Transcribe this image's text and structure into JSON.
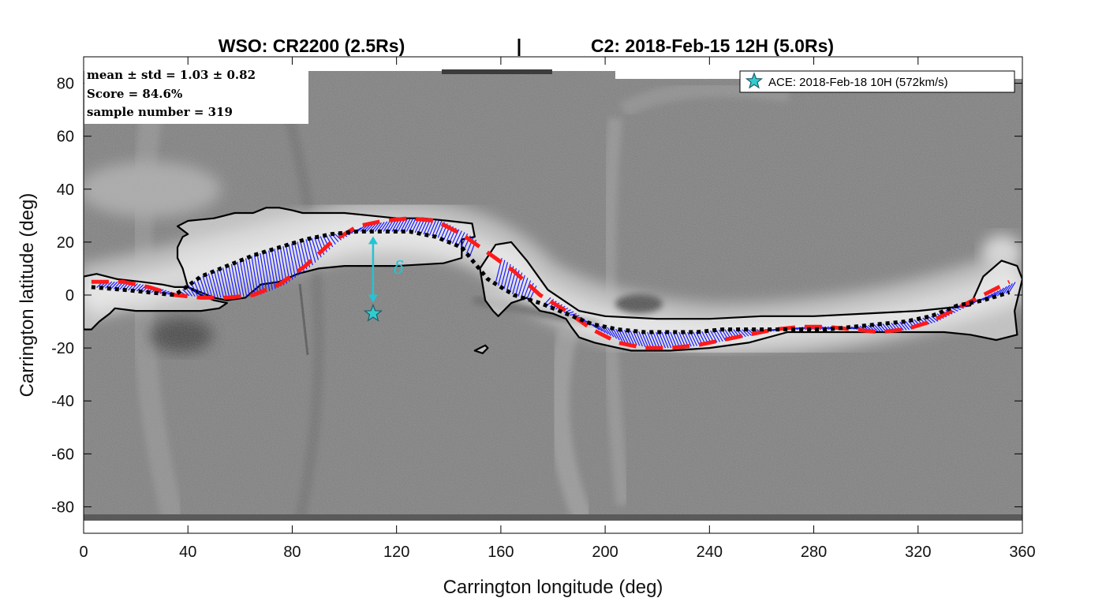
{
  "chart_data": {
    "type": "line",
    "title_left": "WSO:  CR2200    (2.5Rs)",
    "title_sep": "|",
    "title_right": "C2:  2018-Feb-15 12H   (5.0Rs)",
    "xlabel": "Carrington longitude (deg)",
    "ylabel": "Carrington latitude (deg)",
    "xlim": [
      0,
      360
    ],
    "ylim": [
      -90,
      90
    ],
    "xticks": [
      0,
      40,
      80,
      120,
      160,
      200,
      240,
      280,
      320,
      360
    ],
    "yticks": [
      -80,
      -60,
      -40,
      -20,
      0,
      20,
      40,
      60,
      80
    ],
    "stats": [
      "mean ± std = 1.03 ± 0.82",
      "Score = 84.6%",
      "sample number = 319"
    ],
    "legend": {
      "label": "ACE: 2018-Feb-18 10H  (572km/s)",
      "marker_color": "#33cccc",
      "position": "top-right"
    },
    "delta_label": "δ",
    "ace_point": {
      "lon": 111,
      "lat": -7
    },
    "series": [
      {
        "name": "WSO neutral line",
        "color": "#ff1a1a",
        "style": "dashed",
        "x": [
          3,
          15,
          25,
          35,
          45,
          55,
          65,
          75,
          85,
          95,
          105,
          115,
          125,
          135,
          145,
          155,
          165,
          175,
          185,
          195,
          205,
          215,
          225,
          235,
          245,
          255,
          265,
          275,
          285,
          295,
          305,
          315,
          325,
          335,
          345,
          355
        ],
        "y": [
          5,
          5,
          3,
          0,
          -1,
          -1,
          0,
          4,
          11,
          20,
          26,
          28,
          29,
          28,
          23,
          16,
          9,
          0,
          -6,
          -13,
          -18,
          -20,
          -20,
          -19,
          -17,
          -15,
          -13,
          -12,
          -12,
          -13,
          -14,
          -13,
          -10,
          -5,
          0,
          5
        ]
      },
      {
        "name": "C2 streamer belt",
        "color": "#000000",
        "style": "dotted",
        "x": [
          3,
          15,
          25,
          35,
          45,
          55,
          65,
          75,
          85,
          95,
          105,
          115,
          125,
          135,
          145,
          155,
          165,
          175,
          185,
          195,
          205,
          215,
          225,
          235,
          245,
          255,
          265,
          275,
          285,
          295,
          305,
          315,
          325,
          335,
          345,
          355
        ],
        "y": [
          3,
          2,
          1,
          0,
          7,
          11,
          15,
          18,
          21,
          23,
          24,
          24,
          24,
          22,
          18,
          6,
          0,
          -3,
          -7,
          -11,
          -13,
          -14,
          -14,
          -14,
          -13,
          -13,
          -13,
          -13,
          -13,
          -12,
          -11,
          -10,
          -8,
          -4,
          -2,
          1
        ]
      }
    ],
    "contours": [
      {
        "name": "contour-west",
        "points": [
          [
            0,
            7
          ],
          [
            5,
            8
          ],
          [
            13,
            6
          ],
          [
            22,
            5
          ],
          [
            30,
            4
          ],
          [
            35,
            3
          ],
          [
            40,
            3
          ],
          [
            45,
            0
          ],
          [
            50,
            -2
          ],
          [
            55,
            -3
          ],
          [
            52,
            -5
          ],
          [
            45,
            -6
          ],
          [
            35,
            -6
          ],
          [
            20,
            -6
          ],
          [
            12,
            -5
          ],
          [
            10,
            -7
          ],
          [
            6,
            -10
          ],
          [
            3,
            -13
          ],
          [
            0,
            -13
          ],
          [
            0,
            7
          ]
        ]
      },
      {
        "name": "contour-main-upper",
        "points": [
          [
            40,
            23
          ],
          [
            36,
            26
          ],
          [
            40,
            28
          ],
          [
            50,
            29
          ],
          [
            58,
            31
          ],
          [
            65,
            31
          ],
          [
            70,
            33
          ],
          [
            75,
            33
          ],
          [
            80,
            32
          ],
          [
            84,
            31
          ],
          [
            92,
            31
          ],
          [
            100,
            31
          ],
          [
            110,
            30
          ],
          [
            120,
            29
          ],
          [
            130,
            29
          ],
          [
            140,
            28
          ],
          [
            149,
            27
          ],
          [
            150,
            22
          ],
          [
            145,
            21
          ],
          [
            145,
            14
          ],
          [
            138,
            12
          ],
          [
            120,
            11
          ],
          [
            100,
            11
          ],
          [
            90,
            10
          ],
          [
            82,
            8
          ],
          [
            75,
            5
          ],
          [
            68,
            4
          ],
          [
            62,
            -1
          ],
          [
            55,
            -2
          ],
          [
            50,
            -1
          ],
          [
            45,
            1
          ],
          [
            40,
            3
          ],
          [
            38,
            10
          ],
          [
            36,
            14
          ],
          [
            36,
            18
          ],
          [
            38,
            22
          ],
          [
            40,
            23
          ]
        ]
      },
      {
        "name": "contour-east-belt",
        "points": [
          [
            152,
            10
          ],
          [
            158,
            19
          ],
          [
            164,
            20
          ],
          [
            170,
            13
          ],
          [
            178,
            2
          ],
          [
            190,
            -6
          ],
          [
            200,
            -8
          ],
          [
            220,
            -9
          ],
          [
            240,
            -9
          ],
          [
            260,
            -8
          ],
          [
            280,
            -8
          ],
          [
            300,
            -7
          ],
          [
            320,
            -6
          ],
          [
            340,
            -4
          ],
          [
            345,
            7
          ],
          [
            352,
            13
          ],
          [
            358,
            11
          ],
          [
            360,
            6
          ],
          [
            357,
            -6
          ],
          [
            358,
            -15
          ],
          [
            350,
            -17
          ],
          [
            340,
            -15
          ],
          [
            330,
            -14
          ],
          [
            310,
            -14
          ],
          [
            290,
            -14
          ],
          [
            270,
            -14
          ],
          [
            255,
            -18
          ],
          [
            240,
            -20
          ],
          [
            225,
            -21
          ],
          [
            210,
            -21
          ],
          [
            205,
            -20
          ],
          [
            196,
            -18
          ],
          [
            190,
            -16
          ],
          [
            187,
            -12
          ],
          [
            185,
            -9
          ],
          [
            180,
            -7
          ],
          [
            175,
            -6
          ],
          [
            170,
            -1
          ],
          [
            164,
            -3
          ],
          [
            159,
            -8
          ],
          [
            157,
            -6
          ],
          [
            154,
            -2
          ],
          [
            152,
            10
          ]
        ]
      },
      {
        "name": "contour-small",
        "points": [
          [
            150,
            -21
          ],
          [
            153,
            -22
          ],
          [
            155,
            -20
          ],
          [
            154,
            -19
          ],
          [
            152,
            -20
          ],
          [
            150,
            -21
          ]
        ]
      }
    ]
  },
  "colors": {
    "arrow": "#1a1aff",
    "delta_arrow": "#22c4d6",
    "axes": "#000000",
    "background_image": "#777777"
  }
}
